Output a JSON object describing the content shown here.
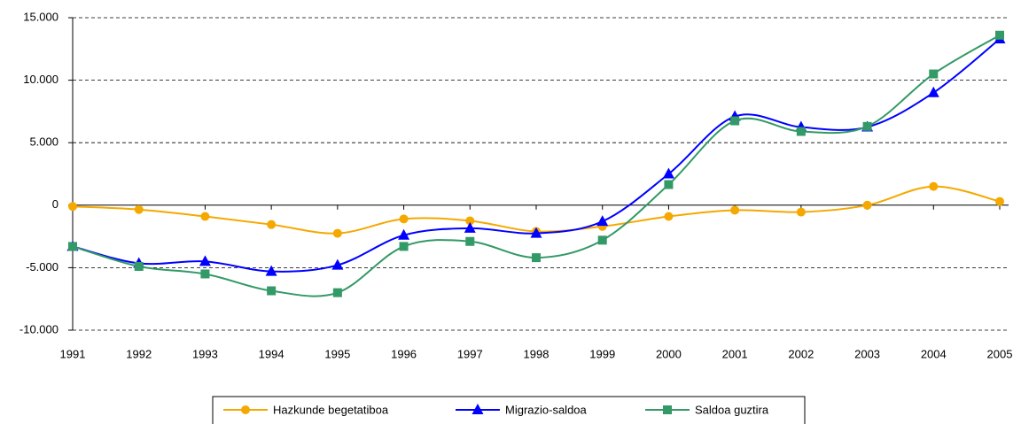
{
  "chart_data": {
    "type": "line",
    "categories": [
      "1991",
      "1992",
      "1993",
      "1994",
      "1995",
      "1996",
      "1997",
      "1998",
      "1999",
      "2000",
      "2001",
      "2002",
      "2003",
      "2004",
      "2005"
    ],
    "series": [
      {
        "name": "Hazkunde begetatiboa",
        "color": "#f5a800",
        "marker": "circle",
        "values": [
          -100,
          -350,
          -900,
          -1550,
          -2250,
          -1100,
          -1250,
          -2100,
          -1700,
          -900,
          -400,
          -550,
          0,
          1500,
          300
        ]
      },
      {
        "name": "Migrazio-saldoa",
        "color": "#0000ff",
        "marker": "triangle",
        "values": [
          -3300,
          -4650,
          -4500,
          -5300,
          -4800,
          -2400,
          -1850,
          -2250,
          -1300,
          2500,
          7100,
          6250,
          6250,
          9000,
          13300
        ]
      },
      {
        "name": "Saldoa guztira",
        "color": "#339966",
        "marker": "square",
        "values": [
          -3300,
          -4900,
          -5500,
          -6850,
          -7000,
          -3300,
          -2900,
          -4200,
          -2800,
          1650,
          6750,
          5900,
          6300,
          10500,
          13600
        ]
      }
    ],
    "ylim": [
      -10000,
      15000
    ],
    "yticks": [
      {
        "value": -10000,
        "label": "-10.000"
      },
      {
        "value": -5000,
        "label": "-5.000"
      },
      0,
      {
        "value": 5000,
        "label": "5.000"
      },
      {
        "value": 10000,
        "label": "10.000"
      },
      {
        "value": 15000,
        "label": "15.000"
      }
    ],
    "grid": true,
    "legend": "bottom"
  }
}
